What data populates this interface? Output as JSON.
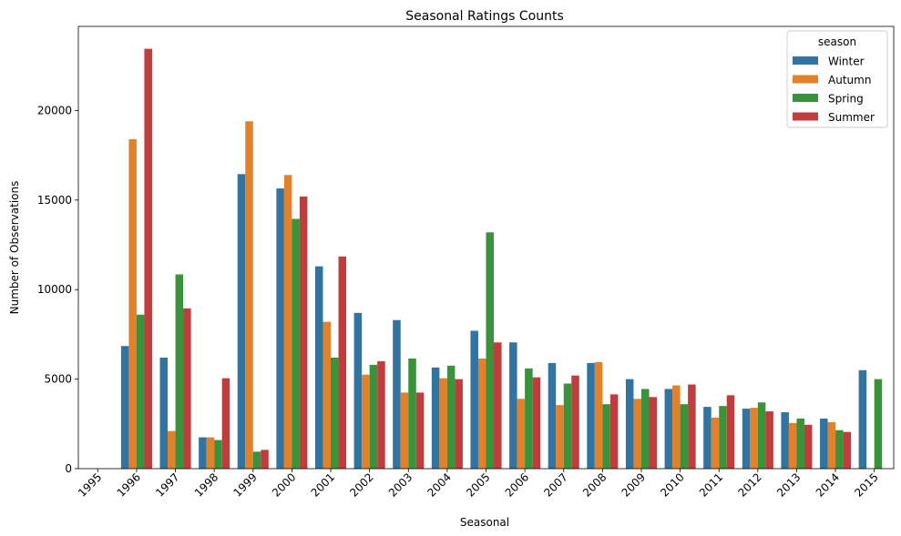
{
  "chart_data": {
    "type": "bar",
    "title": "Seasonal Ratings Counts",
    "xlabel": "Seasonal",
    "ylabel": "Number of Observations",
    "categories": [
      "1995",
      "1996",
      "1997",
      "1998",
      "1999",
      "2000",
      "2001",
      "2002",
      "2003",
      "2004",
      "2005",
      "2006",
      "2007",
      "2008",
      "2009",
      "2010",
      "2011",
      "2012",
      "2013",
      "2014",
      "2015"
    ],
    "ylim": [
      0,
      24700
    ],
    "yticks": [
      0,
      5000,
      10000,
      15000,
      20000
    ],
    "grid": false,
    "legend": {
      "title": "season",
      "position": "top-right"
    },
    "series": [
      {
        "name": "Winter",
        "color": "#3274a1",
        "values": [
          0,
          6850,
          6200,
          1750,
          16450,
          15650,
          11300,
          8700,
          8300,
          5650,
          7700,
          7050,
          5900,
          5900,
          5000,
          4450,
          3450,
          3350,
          3150,
          2800,
          5500
        ]
      },
      {
        "name": "Autumn",
        "color": "#e1812c",
        "values": [
          0,
          18400,
          2100,
          1750,
          19400,
          16400,
          8200,
          5250,
          4250,
          5050,
          6150,
          3900,
          3550,
          5950,
          3900,
          4650,
          2850,
          3400,
          2550,
          2600,
          0
        ]
      },
      {
        "name": "Spring",
        "color": "#3a923a",
        "values": [
          0,
          8600,
          10850,
          1600,
          950,
          13950,
          6200,
          5800,
          6150,
          5750,
          13200,
          5600,
          4750,
          3600,
          4450,
          3600,
          3500,
          3700,
          2800,
          2150,
          5000
        ]
      },
      {
        "name": "Summer",
        "color": "#c03d3e",
        "values": [
          0,
          23450,
          8950,
          5050,
          1050,
          15200,
          11850,
          6000,
          4250,
          5000,
          7050,
          5100,
          5200,
          4150,
          4000,
          4700,
          4100,
          3200,
          2450,
          2050,
          0
        ]
      }
    ]
  }
}
